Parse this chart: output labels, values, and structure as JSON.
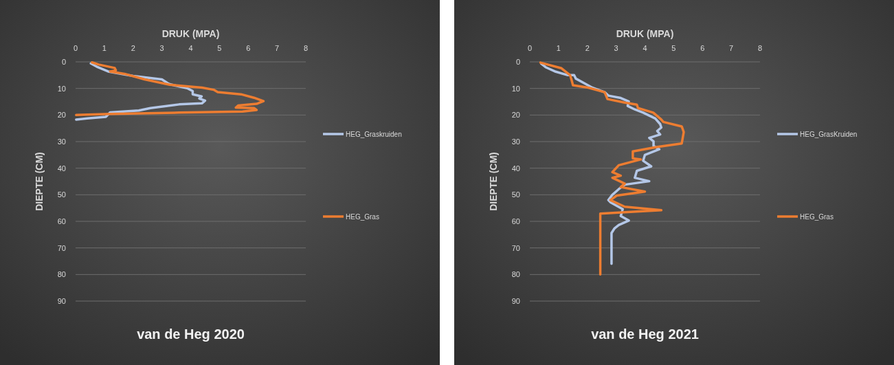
{
  "chart_data": [
    {
      "type": "line",
      "title": "van de Heg 2020",
      "xlabel": "DRUK (MPA)",
      "ylabel": "DIEPTE (CM)",
      "xlim": [
        0,
        8
      ],
      "xticks": [
        0,
        1,
        2,
        3,
        4,
        5,
        6,
        7,
        8
      ],
      "ylim": [
        90,
        0
      ],
      "yticks": [
        0,
        10,
        20,
        30,
        40,
        50,
        60,
        70,
        80,
        90
      ],
      "grid": "y",
      "legend": "right",
      "line_style": "solid",
      "series": [
        {
          "name": "HEG_Graskruiden",
          "color": "#b4c7e7",
          "x": [
            0.53,
            0.77,
            1.13,
            2.0,
            3.0,
            3.2,
            3.27,
            3.9,
            4.07,
            4.07,
            4.38,
            4.3,
            4.5,
            4.39,
            3.6,
            2.6,
            2.2,
            1.2,
            1.05,
            0.4,
            0.02
          ],
          "values": [
            0.6,
            2,
            3.6,
            5.3,
            6.6,
            8,
            8.4,
            10,
            11,
            12.2,
            13,
            13.8,
            14.6,
            15.6,
            16,
            17.4,
            18.3,
            19,
            20.7,
            21.3,
            21.7
          ]
        },
        {
          "name": "HEG_Gras",
          "color": "#ed7d31",
          "x": [
            0.57,
            0.8,
            1.36,
            1.4,
            1.2,
            1.7,
            2.4,
            3.27,
            4.4,
            4.8,
            4.94,
            5.75,
            6.2,
            6.53,
            6.29,
            5.65,
            5.57,
            6.2,
            6.29,
            5.8,
            3.6,
            1.2,
            0.02
          ],
          "values": [
            0.2,
            1,
            2.3,
            3.2,
            3.6,
            4.5,
            6.6,
            8.6,
            9.7,
            10.5,
            11.4,
            12.2,
            13.5,
            14.8,
            15.8,
            16.4,
            17.2,
            17.4,
            18.1,
            18.7,
            19.1,
            19.6,
            20
          ]
        }
      ]
    },
    {
      "type": "line",
      "title": "van de Heg 2021",
      "xlabel": "DRUK (MPA)",
      "ylabel": "DIEPTE (CM)",
      "xlim": [
        0,
        8
      ],
      "xticks": [
        0,
        1,
        2,
        3,
        4,
        5,
        6,
        7,
        8
      ],
      "ylim": [
        90,
        0
      ],
      "yticks": [
        0,
        10,
        20,
        30,
        40,
        50,
        60,
        70,
        80,
        90
      ],
      "grid": "y",
      "legend": "right",
      "line_style": "solid",
      "series": [
        {
          "name": "HEG_GrasKruiden",
          "color": "#b4c7e7",
          "x": [
            0.4,
            0.55,
            0.9,
            1.32,
            1.54,
            1.6,
            1.89,
            2.17,
            2.6,
            2.73,
            3.16,
            3.44,
            3.4,
            3.65,
            3.94,
            4.36,
            4.53,
            4.57,
            4.43,
            4.53,
            4.15,
            4.3,
            4.3,
            4.5,
            4.0,
            3.94,
            4.22,
            3.72,
            3.65,
            4.15,
            3.3,
            3.09,
            2.87,
            2.73,
            2.8,
            3.23,
            3.16,
            3.44,
            3.09,
            2.94,
            2.84,
            2.84
          ],
          "values": [
            0.7,
            2,
            3.7,
            5,
            5,
            6.3,
            8,
            9.7,
            11.4,
            12.7,
            13.6,
            14.9,
            16.6,
            17.9,
            19.1,
            21.3,
            23.4,
            24.7,
            26,
            27.3,
            28.6,
            29.9,
            31.6,
            32.9,
            35,
            37.2,
            39.3,
            41,
            43.6,
            44.9,
            46.2,
            47.9,
            50,
            52,
            52.8,
            55.4,
            58,
            59.7,
            61.4,
            62.7,
            64.4,
            76
          ]
        },
        {
          "name": "HEG_Gras",
          "color": "#ed7d31",
          "x": [
            0.37,
            1.1,
            1.4,
            1.46,
            1.5,
            2.03,
            2.6,
            2.7,
            3.3,
            3.72,
            3.76,
            4.29,
            4.57,
            4.64,
            5.28,
            5.35,
            5.28,
            4.43,
            3.58,
            3.58,
            3.86,
            3.09,
            2.87,
            3.16,
            2.87,
            3.3,
            3.16,
            4.0,
            3.02,
            2.8,
            3.3,
            4.57,
            2.45,
            2.45
          ],
          "values": [
            0.3,
            2.4,
            5,
            7.1,
            8.8,
            9.7,
            11.4,
            14,
            15.3,
            16.1,
            17.4,
            19.1,
            21.7,
            22.6,
            24.3,
            26.4,
            30.7,
            32,
            33.7,
            36.3,
            36.7,
            38.9,
            41.5,
            42.8,
            43.6,
            45.8,
            47.1,
            48.8,
            50.3,
            52,
            54.5,
            55.8,
            57.1,
            80
          ]
        }
      ]
    }
  ]
}
